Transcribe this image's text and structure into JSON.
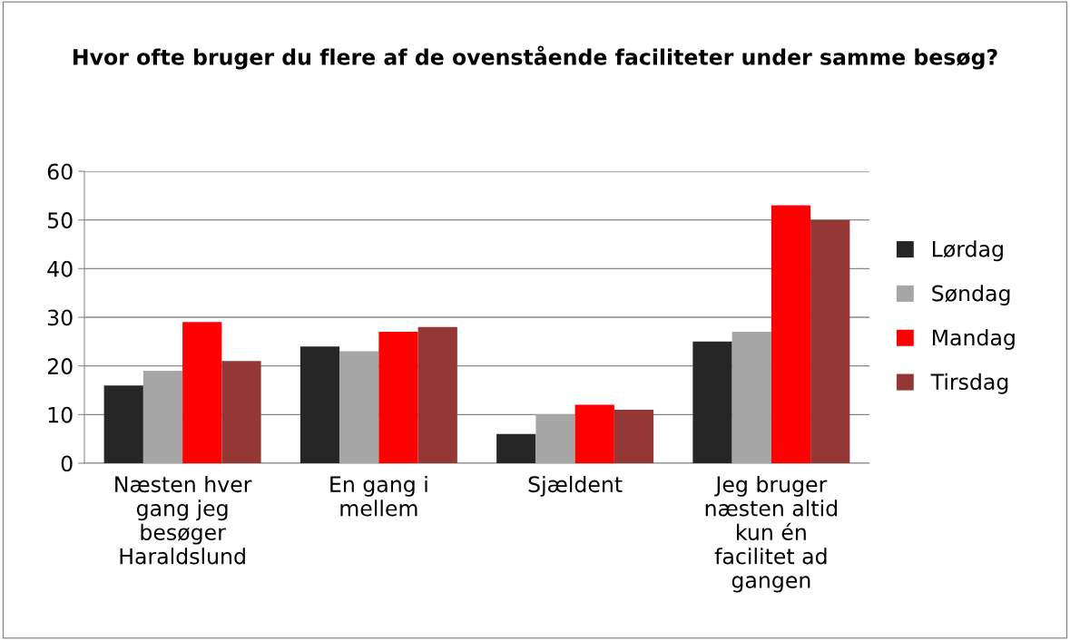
{
  "chart_data": {
    "type": "bar",
    "title": "Hvor ofte bruger du flere af de ovenstående faciliteter under samme besøg?",
    "categories": [
      "Næsten hver gang jeg besøger Haraldslund",
      "En gang i mellem",
      "Sjældent",
      "Jeg bruger næsten altid kun én facilitet ad gangen"
    ],
    "series": [
      {
        "name": "Lørdag",
        "color": "#262626",
        "values": [
          16,
          24,
          6,
          25
        ]
      },
      {
        "name": "Søndag",
        "color": "#a6a6a6",
        "values": [
          19,
          23,
          10,
          27
        ]
      },
      {
        "name": "Mandag",
        "color": "#ff0000",
        "values": [
          29,
          27,
          12,
          53
        ]
      },
      {
        "name": "Tirsdag",
        "color": "#953735",
        "values": [
          21,
          28,
          11,
          50
        ]
      }
    ],
    "ylim": [
      0,
      60
    ],
    "yticks": [
      0,
      10,
      20,
      30,
      40,
      50,
      60
    ],
    "grid": "y",
    "legend": "right"
  }
}
